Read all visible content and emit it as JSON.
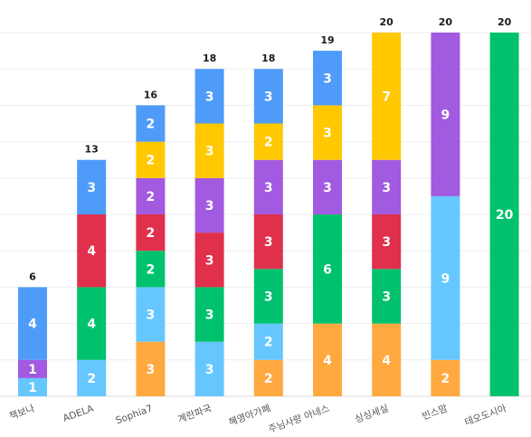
{
  "chart_data": {
    "type": "bar",
    "stacked": true,
    "categories": [
      "책보나",
      "ADELA",
      "Sophia7",
      "계란파국",
      "혜영아가폐",
      "주님사랑 아네스",
      "싱싱세실",
      "빈스맘",
      "테오도시아"
    ],
    "totals": [
      6,
      13,
      16,
      18,
      18,
      19,
      20,
      20,
      20
    ],
    "series": [
      {
        "color": "#66c7ff",
        "values": [
          1,
          2,
          3,
          3,
          2,
          0,
          0,
          9,
          0
        ]
      },
      {
        "color": "#ffa940",
        "values": [
          0,
          0,
          3,
          0,
          2,
          4,
          4,
          2,
          0
        ]
      },
      {
        "color": "#00c26e",
        "values": [
          0,
          4,
          2,
          3,
          3,
          6,
          3,
          0,
          20
        ]
      },
      {
        "color": "#e1304c",
        "values": [
          0,
          4,
          2,
          3,
          3,
          0,
          3,
          0,
          0
        ]
      },
      {
        "color": "#a15ae0",
        "values": [
          1,
          0,
          2,
          3,
          3,
          3,
          3,
          9,
          0
        ]
      },
      {
        "color": "#ffc800",
        "values": [
          0,
          0,
          2,
          3,
          2,
          3,
          7,
          0,
          0
        ]
      },
      {
        "color": "#4f9bfa",
        "values": [
          4,
          3,
          2,
          3,
          3,
          3,
          0,
          0,
          0
        ]
      }
    ],
    "segments": [
      [
        {
          "v": 1,
          "c": "#66c7ff"
        },
        {
          "v": 1,
          "c": "#a15ae0"
        },
        {
          "v": 4,
          "c": "#4f9bfa"
        }
      ],
      [
        {
          "v": 2,
          "c": "#66c7ff"
        },
        {
          "v": 4,
          "c": "#00c26e"
        },
        {
          "v": 4,
          "c": "#e1304c"
        },
        {
          "v": 3,
          "c": "#4f9bfa"
        }
      ],
      [
        {
          "v": 3,
          "c": "#ffa940"
        },
        {
          "v": 3,
          "c": "#66c7ff"
        },
        {
          "v": 2,
          "c": "#00c26e"
        },
        {
          "v": 2,
          "c": "#e1304c"
        },
        {
          "v": 2,
          "c": "#a15ae0"
        },
        {
          "v": 2,
          "c": "#ffc800"
        },
        {
          "v": 2,
          "c": "#4f9bfa"
        }
      ],
      [
        {
          "v": 3,
          "c": "#66c7ff"
        },
        {
          "v": 3,
          "c": "#00c26e"
        },
        {
          "v": 3,
          "c": "#e1304c"
        },
        {
          "v": 3,
          "c": "#a15ae0"
        },
        {
          "v": 3,
          "c": "#ffc800"
        },
        {
          "v": 3,
          "c": "#4f9bfa"
        }
      ],
      [
        {
          "v": 2,
          "c": "#ffa940"
        },
        {
          "v": 2,
          "c": "#66c7ff"
        },
        {
          "v": 3,
          "c": "#00c26e"
        },
        {
          "v": 3,
          "c": "#e1304c"
        },
        {
          "v": 3,
          "c": "#a15ae0"
        },
        {
          "v": 2,
          "c": "#ffc800"
        },
        {
          "v": 3,
          "c": "#4f9bfa"
        }
      ],
      [
        {
          "v": 4,
          "c": "#ffa940"
        },
        {
          "v": 6,
          "c": "#00c26e"
        },
        {
          "v": 3,
          "c": "#a15ae0"
        },
        {
          "v": 3,
          "c": "#ffc800"
        },
        {
          "v": 3,
          "c": "#4f9bfa"
        }
      ],
      [
        {
          "v": 4,
          "c": "#ffa940"
        },
        {
          "v": 3,
          "c": "#00c26e"
        },
        {
          "v": 3,
          "c": "#e1304c"
        },
        {
          "v": 3,
          "c": "#a15ae0"
        },
        {
          "v": 7,
          "c": "#ffc800"
        }
      ],
      [
        {
          "v": 2,
          "c": "#ffa940"
        },
        {
          "v": 9,
          "c": "#66c7ff"
        },
        {
          "v": 9,
          "c": "#a15ae0"
        }
      ],
      [
        {
          "v": 20,
          "c": "#00c26e"
        }
      ]
    ],
    "ylim": [
      0,
      20
    ],
    "grid": true,
    "title": "",
    "xlabel": "",
    "ylabel": ""
  }
}
